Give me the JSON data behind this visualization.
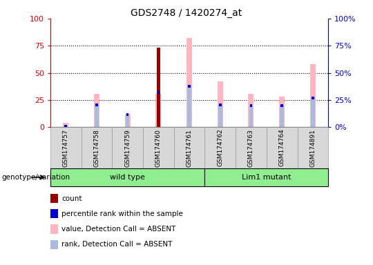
{
  "title": "GDS2748 / 1420274_at",
  "samples": [
    "GSM174757",
    "GSM174758",
    "GSM174759",
    "GSM174760",
    "GSM174761",
    "GSM174762",
    "GSM174763",
    "GSM174764",
    "GSM174891"
  ],
  "count_values": [
    0,
    0,
    0,
    73,
    0,
    0,
    0,
    0,
    0
  ],
  "pink_value": [
    4,
    31,
    12,
    31,
    82,
    42,
    31,
    28,
    58
  ],
  "blue_rank": [
    1,
    21,
    12,
    32,
    38,
    21,
    20,
    20,
    27
  ],
  "light_blue_rank": [
    1,
    21,
    12,
    32,
    38,
    21,
    20,
    20,
    27
  ],
  "group_label": "genotype/variation",
  "ylim": [
    0,
    100
  ],
  "yticks": [
    0,
    25,
    50,
    75,
    100
  ],
  "y_color_left": "#CC0000",
  "y_color_right": "#0000CC",
  "bar_color_count": "#990000",
  "bar_color_pink": "#FFB6C1",
  "bar_color_blue": "#0000CD",
  "bar_color_light_blue": "#AABBDD",
  "grid_color": "black",
  "bg_color": "#D8D8D8",
  "legend_items": [
    {
      "color": "#990000",
      "label": "count"
    },
    {
      "color": "#0000CD",
      "label": "percentile rank within the sample"
    },
    {
      "color": "#FFB6C1",
      "label": "value, Detection Call = ABSENT"
    },
    {
      "color": "#AABBDD",
      "label": "rank, Detection Call = ABSENT"
    }
  ]
}
